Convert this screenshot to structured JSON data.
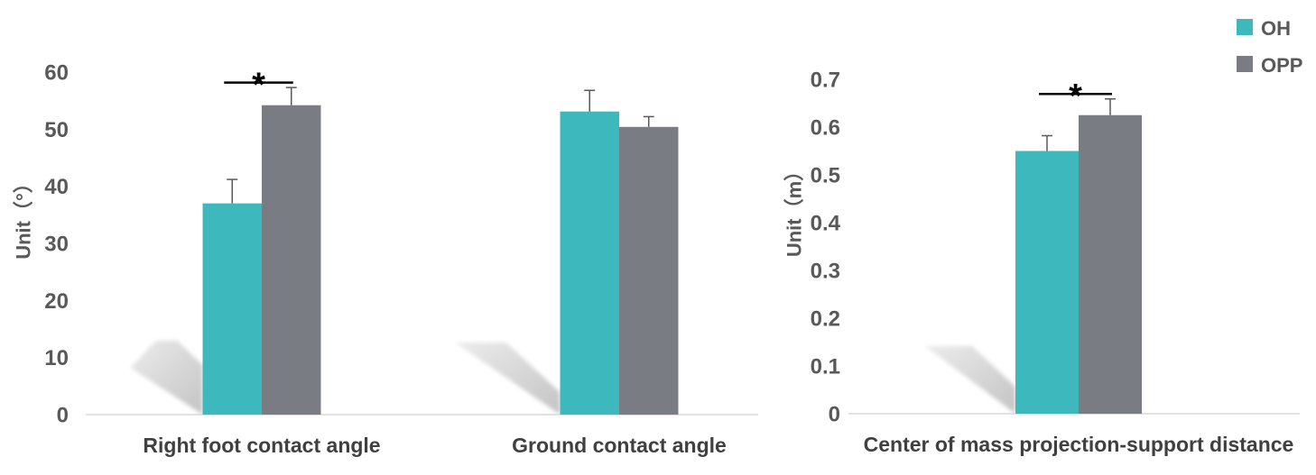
{
  "legend": {
    "placement": "top-right",
    "items": [
      {
        "label": "OH",
        "color": "#3db8bd"
      },
      {
        "label": "OPP",
        "color": "#7a7c84"
      }
    ]
  },
  "chart_data": [
    {
      "type": "bar",
      "ylabel": "Unit（°）",
      "ylim": [
        0,
        60
      ],
      "yticks": [
        0,
        10,
        20,
        30,
        40,
        50,
        60
      ],
      "grid": false,
      "categories": [
        "Right foot contact angle",
        "Ground contact angle"
      ],
      "series": [
        {
          "name": "OH",
          "color": "#3db8bd",
          "values": [
            37.0,
            53.1
          ],
          "error": [
            4.2,
            3.7
          ]
        },
        {
          "name": "OPP",
          "color": "#7a7c84",
          "values": [
            54.2,
            50.4
          ],
          "error": [
            3.1,
            1.8
          ]
        }
      ],
      "significance": [
        {
          "category_index": 0,
          "label": "*"
        }
      ]
    },
    {
      "type": "bar",
      "ylabel": "Unit（m）",
      "ylim": [
        0,
        0.7
      ],
      "yticks": [
        0,
        0.1,
        0.2,
        0.3,
        0.4,
        0.5,
        0.6,
        0.7
      ],
      "grid": false,
      "categories": [
        "Center of mass projection-support distance"
      ],
      "series": [
        {
          "name": "OH",
          "color": "#3db8bd",
          "values": [
            0.55
          ],
          "error": [
            0.032
          ]
        },
        {
          "name": "OPP",
          "color": "#7a7c84",
          "values": [
            0.625
          ],
          "error": [
            0.034
          ]
        }
      ],
      "significance": [
        {
          "category_index": 0,
          "label": "*"
        }
      ]
    }
  ]
}
